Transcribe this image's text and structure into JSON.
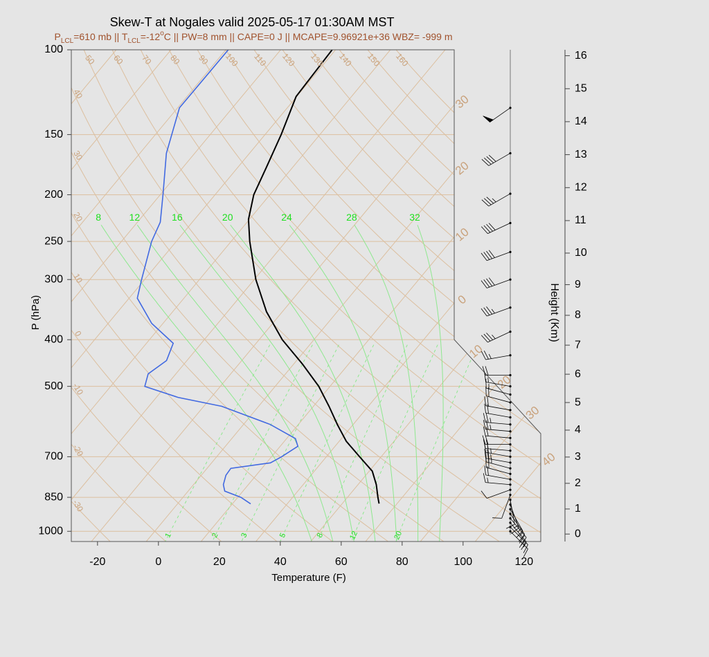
{
  "chart_data": {
    "type": "skewt",
    "title": "Skew-T at Nogales valid 2025-05-17 01:30AM MST",
    "subtitle": [
      "P",
      "LCL",
      "=610 mb || T",
      "LCL",
      "=-12",
      "o",
      "C || PW=8 mm || CAPE=0 J || MCAPE=9.96921e+36 WBZ= -999 m"
    ],
    "subtitle_styles": [
      "normal",
      "sub",
      "normal",
      "sub",
      "normal",
      "super",
      "normal"
    ],
    "subtitle_color": "#a0522d",
    "xlabel": "Temperature (F)",
    "ylabel": "P (hPa)",
    "y2label": "Height (Km)",
    "xlim": [
      -28.6,
      125.5
    ],
    "xticks": [
      -20,
      0,
      20,
      40,
      60,
      80,
      100,
      120
    ],
    "ylim": [
      100,
      1050
    ],
    "yscale": "log",
    "yticks": [
      100,
      150,
      200,
      250,
      300,
      400,
      500,
      700,
      850,
      1000
    ],
    "height_ticks": [
      0,
      1,
      2,
      3,
      4,
      5,
      6,
      7,
      8,
      9,
      10,
      11,
      12,
      13,
      14,
      15,
      16
    ],
    "background_color": "#e5e5e5",
    "grid_color": "#dcbf9f",
    "grid_label_color": "#c9a27c",
    "adiabat_color": "#8ee88e",
    "adiabat_label_color": "#1fe01f",
    "series": [
      {
        "color": "#000000",
        "pressure": [
          876,
          850,
          800,
          750,
          700,
          650,
          600,
          550,
          500,
          450,
          400,
          350,
          300,
          250,
          225,
          200,
          175,
          150,
          125,
          100
        ],
        "values": [
          62.1,
          60.0,
          56.0,
          51.0,
          42.9,
          34.3,
          26.8,
          19.1,
          10.3,
          -1.0,
          -14.4,
          -27.2,
          -39.5,
          -51.9,
          -58.3,
          -63.3,
          -66.7,
          -70.7,
          -76.2,
          -77.1
        ]
      },
      {
        "color": "#4169e1",
        "pressure": [
          877,
          850,
          825,
          800,
          765,
          740,
          721,
          700,
          666,
          642,
          600,
          550,
          527,
          500,
          471,
          442,
          407,
          370,
          328,
          300,
          250,
          228,
          200,
          164,
          132,
          100
        ],
        "values": [
          20.0,
          15.0,
          8.0,
          5.8,
          4.1,
          3.8,
          15.3,
          17.3,
          19.8,
          16.9,
          4.8,
          -16.1,
          -32.9,
          -46.8,
          -49.1,
          -46.7,
          -49.2,
          -61.7,
          -73.3,
          -77.0,
          -84.1,
          -86.5,
          -93.1,
          -103.3,
          -111.4,
          -111.2
        ]
      }
    ],
    "isotherms": [
      {
        "value": -30,
        "label": "30"
      },
      {
        "value": -20,
        "label": "20"
      },
      {
        "value": -10,
        "label": "10"
      },
      0,
      10,
      20,
      30,
      40
    ],
    "dry_adiabats": [
      -30,
      -20,
      -10,
      0,
      10,
      20,
      30,
      40,
      50,
      60,
      70,
      80,
      90,
      100,
      110,
      120,
      130,
      140,
      150,
      160
    ],
    "moist_adiabats": [
      8,
      12,
      16,
      20,
      24,
      28,
      32
    ],
    "mixing_ratios": [
      1,
      2,
      3,
      5,
      8,
      12,
      20
    ],
    "wind": {
      "pressure": [
        132,
        164,
        199,
        229,
        263,
        300,
        343,
        385,
        431,
        474,
        500,
        520,
        540,
        560,
        580,
        600,
        620,
        640,
        660,
        680,
        700,
        720,
        740,
        760,
        780,
        800,
        820,
        840,
        860,
        880,
        900,
        920,
        940,
        960,
        980,
        1000
      ],
      "direction": [
        235,
        240,
        240,
        245,
        250,
        250,
        250,
        245,
        260,
        270,
        280,
        285,
        285,
        280,
        280,
        275,
        275,
        275,
        270,
        275,
        280,
        280,
        285,
        285,
        280,
        275,
        250,
        200,
        170,
        160,
        150,
        145,
        140,
        140,
        135,
        135
      ],
      "speed": [
        50,
        40,
        35,
        40,
        40,
        40,
        35,
        35,
        25,
        20,
        15,
        15,
        20,
        20,
        20,
        25,
        25,
        20,
        20,
        20,
        25,
        25,
        25,
        20,
        20,
        15,
        10,
        10,
        10,
        15,
        15,
        15,
        20,
        20,
        15,
        10
      ]
    }
  }
}
